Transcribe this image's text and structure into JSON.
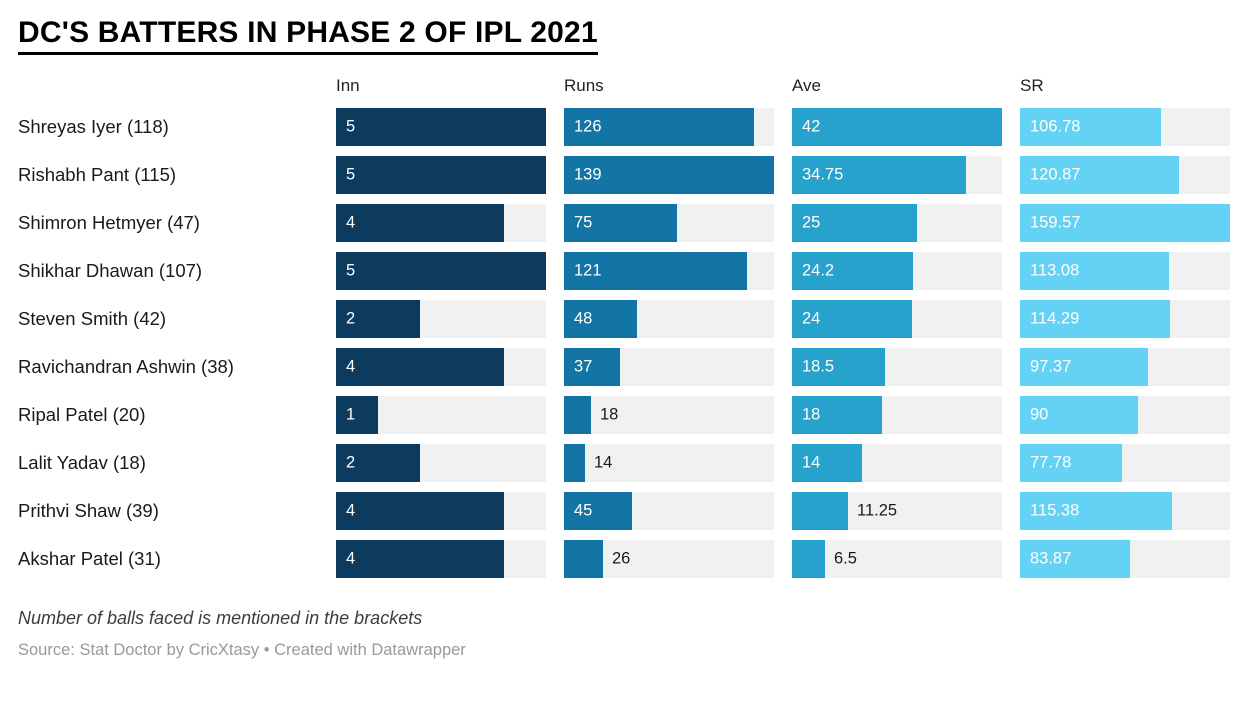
{
  "chart_data": {
    "type": "bar",
    "title": "DC'S BATTERS IN PHASE 2 OF IPL 2021",
    "categories": [
      "Shreyas Iyer (118)",
      "Rishabh Pant (115)",
      "Shimron Hetmyer (47)",
      "Shikhar Dhawan (107)",
      "Steven Smith (42)",
      "Ravichandran Ashwin (38)",
      "Ripal Patel (20)",
      "Lalit Yadav (18)",
      "Prithvi Shaw (39)",
      "Akshar Patel (31)"
    ],
    "series": [
      {
        "name": "Inn",
        "color": "#0c3b5d",
        "max": 5,
        "values": [
          5,
          5,
          4,
          5,
          2,
          4,
          1,
          2,
          4,
          4
        ]
      },
      {
        "name": "Runs",
        "color": "#1375a5",
        "max": 139,
        "values": [
          126,
          139,
          75,
          121,
          48,
          37,
          18,
          14,
          45,
          26
        ]
      },
      {
        "name": "Ave",
        "color": "#27a2cd",
        "max": 42,
        "values": [
          42,
          34.75,
          25,
          24.2,
          24,
          18.5,
          18,
          14,
          11.25,
          6.5
        ]
      },
      {
        "name": "SR",
        "color": "#64d2f5",
        "max": 159.57,
        "values": [
          106.78,
          120.87,
          159.57,
          113.08,
          114.29,
          97.37,
          90,
          77.78,
          115.38,
          83.87
        ]
      }
    ],
    "track_color": "#f1f1f1",
    "legend_position": "none",
    "grid": false,
    "footnote": "Number of balls faced is mentioned in the brackets",
    "source": "Source: Stat Doctor by CricXtasy • Created with Datawrapper"
  }
}
